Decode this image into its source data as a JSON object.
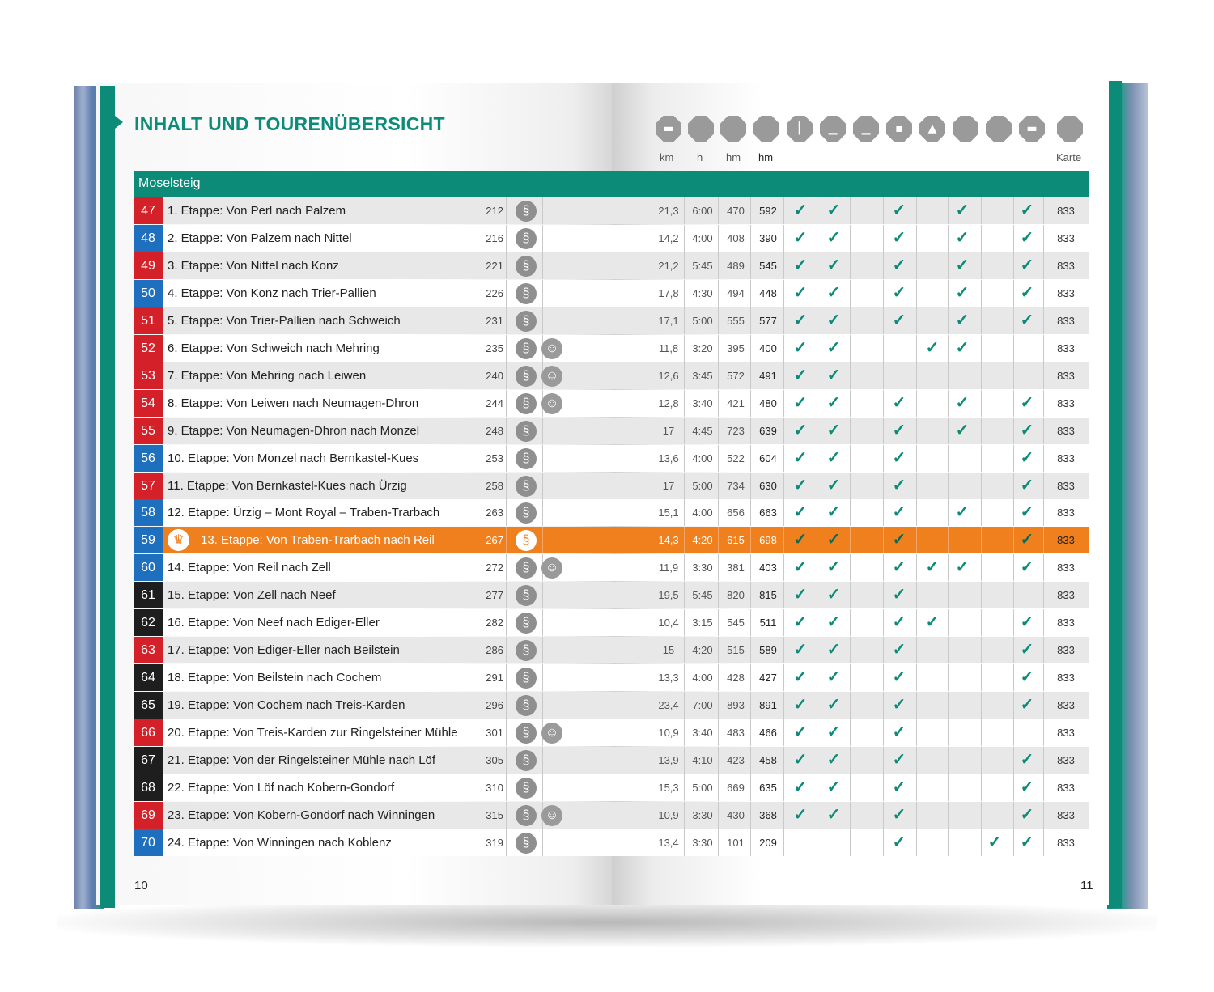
{
  "left_page": {
    "title": "INHALT UND TOURENÜBERSICHT",
    "page_number": "10"
  },
  "right_page": {
    "page_number": "11",
    "header_icons": [
      "category-icon",
      "category-icon",
      "category-icon",
      "category-icon",
      "category-icon",
      "category-icon",
      "category-icon",
      "category-icon",
      "category-icon",
      "category-icon",
      "category-icon",
      "category-icon",
      "category-icon"
    ],
    "column_headers": {
      "km": "km",
      "h": "h",
      "hm_up": "hm",
      "hm_down": "hm",
      "map": "Karte"
    }
  },
  "section": {
    "label": "Moselsteig"
  },
  "colors": {
    "accent": "#0b8b78",
    "highlight": "#f07f1e",
    "red": "#d42028",
    "blue": "#1e6fbd",
    "black": "#1e1e1e"
  },
  "check_symbol": "✓",
  "tours": [
    {
      "num": "47",
      "color": "red",
      "name": "1. Etappe: Von Perl nach Palzem",
      "page": "212",
      "kid": false,
      "km": "21,3",
      "h": "6:00",
      "hm_up": "470",
      "hm_down": "592",
      "checks": [
        1,
        1,
        0,
        1,
        0,
        1,
        0,
        1
      ],
      "map": "833"
    },
    {
      "num": "48",
      "color": "blue",
      "name": "2. Etappe: Von Palzem nach Nittel",
      "page": "216",
      "kid": false,
      "km": "14,2",
      "h": "4:00",
      "hm_up": "408",
      "hm_down": "390",
      "checks": [
        1,
        1,
        0,
        1,
        0,
        1,
        0,
        1
      ],
      "map": "833"
    },
    {
      "num": "49",
      "color": "red",
      "name": "3. Etappe: Von Nittel nach Konz",
      "page": "221",
      "kid": false,
      "km": "21,2",
      "h": "5:45",
      "hm_up": "489",
      "hm_down": "545",
      "checks": [
        1,
        1,
        0,
        1,
        0,
        1,
        0,
        1
      ],
      "map": "833"
    },
    {
      "num": "50",
      "color": "blue",
      "name": "4. Etappe: Von Konz nach Trier-Pallien",
      "page": "226",
      "kid": false,
      "km": "17,8",
      "h": "4:30",
      "hm_up": "494",
      "hm_down": "448",
      "checks": [
        1,
        1,
        0,
        1,
        0,
        1,
        0,
        1
      ],
      "map": "833"
    },
    {
      "num": "51",
      "color": "red",
      "name": "5. Etappe: Von Trier-Pallien nach Schweich",
      "page": "231",
      "kid": false,
      "km": "17,1",
      "h": "5:00",
      "hm_up": "555",
      "hm_down": "577",
      "checks": [
        1,
        1,
        0,
        1,
        0,
        1,
        0,
        1
      ],
      "map": "833"
    },
    {
      "num": "52",
      "color": "red",
      "name": "6. Etappe: Von Schweich nach Mehring",
      "page": "235",
      "kid": true,
      "km": "11,8",
      "h": "3:20",
      "hm_up": "395",
      "hm_down": "400",
      "checks": [
        1,
        1,
        0,
        0,
        1,
        1,
        0,
        0
      ],
      "map": "833"
    },
    {
      "num": "53",
      "color": "red",
      "name": "7. Etappe: Von Mehring nach Leiwen",
      "page": "240",
      "kid": true,
      "km": "12,6",
      "h": "3:45",
      "hm_up": "572",
      "hm_down": "491",
      "checks": [
        1,
        1,
        0,
        0,
        0,
        0,
        0,
        0
      ],
      "map": "833"
    },
    {
      "num": "54",
      "color": "red",
      "name": "8. Etappe: Von Leiwen nach Neumagen-Dhron",
      "page": "244",
      "kid": true,
      "km": "12,8",
      "h": "3:40",
      "hm_up": "421",
      "hm_down": "480",
      "checks": [
        1,
        1,
        0,
        1,
        0,
        1,
        0,
        1
      ],
      "map": "833"
    },
    {
      "num": "55",
      "color": "red",
      "name": "9. Etappe: Von Neumagen-Dhron nach Monzel",
      "page": "248",
      "kid": false,
      "km": "17",
      "h": "4:45",
      "hm_up": "723",
      "hm_down": "639",
      "checks": [
        1,
        1,
        0,
        1,
        0,
        1,
        0,
        1
      ],
      "map": "833"
    },
    {
      "num": "56",
      "color": "blue",
      "name": "10. Etappe: Von Monzel nach Bernkastel-Kues",
      "page": "253",
      "kid": false,
      "km": "13,6",
      "h": "4:00",
      "hm_up": "522",
      "hm_down": "604",
      "checks": [
        1,
        1,
        0,
        1,
        0,
        0,
        0,
        1
      ],
      "map": "833"
    },
    {
      "num": "57",
      "color": "red",
      "name": "11. Etappe: Von Bernkastel-Kues nach Ürzig",
      "page": "258",
      "kid": false,
      "km": "17",
      "h": "5:00",
      "hm_up": "734",
      "hm_down": "630",
      "checks": [
        1,
        1,
        0,
        1,
        0,
        0,
        0,
        1
      ],
      "map": "833"
    },
    {
      "num": "58",
      "color": "blue",
      "name": "12. Etappe: Ürzig – Mont Royal – Traben-Trarbach",
      "page": "263",
      "kid": false,
      "km": "15,1",
      "h": "4:00",
      "hm_up": "656",
      "hm_down": "663",
      "checks": [
        1,
        1,
        0,
        1,
        0,
        1,
        0,
        1
      ],
      "map": "833"
    },
    {
      "num": "59",
      "color": "blue",
      "name": "13. Etappe: Von Traben-Trarbach nach Reil",
      "page": "267",
      "kid": false,
      "km": "14,3",
      "h": "4:20",
      "hm_up": "615",
      "hm_down": "698",
      "checks": [
        1,
        1,
        0,
        1,
        0,
        0,
        0,
        1
      ],
      "map": "833",
      "highlight": true
    },
    {
      "num": "60",
      "color": "blue",
      "name": "14. Etappe: Von Reil nach Zell",
      "page": "272",
      "kid": true,
      "km": "11,9",
      "h": "3:30",
      "hm_up": "381",
      "hm_down": "403",
      "checks": [
        1,
        1,
        0,
        1,
        1,
        1,
        0,
        1
      ],
      "map": "833"
    },
    {
      "num": "61",
      "color": "black",
      "name": "15. Etappe: Von Zell nach Neef",
      "page": "277",
      "kid": false,
      "km": "19,5",
      "h": "5:45",
      "hm_up": "820",
      "hm_down": "815",
      "checks": [
        1,
        1,
        0,
        1,
        0,
        0,
        0,
        0
      ],
      "map": "833"
    },
    {
      "num": "62",
      "color": "black",
      "name": "16. Etappe: Von Neef nach Ediger-Eller",
      "page": "282",
      "kid": false,
      "km": "10,4",
      "h": "3:15",
      "hm_up": "545",
      "hm_down": "511",
      "checks": [
        1,
        1,
        0,
        1,
        1,
        0,
        0,
        1
      ],
      "map": "833"
    },
    {
      "num": "63",
      "color": "red",
      "name": "17. Etappe: Von Ediger-Eller nach Beilstein",
      "page": "286",
      "kid": false,
      "km": "15",
      "h": "4:20",
      "hm_up": "515",
      "hm_down": "589",
      "checks": [
        1,
        1,
        0,
        1,
        0,
        0,
        0,
        1
      ],
      "map": "833"
    },
    {
      "num": "64",
      "color": "black",
      "name": "18. Etappe: Von Beilstein nach Cochem",
      "page": "291",
      "kid": false,
      "km": "13,3",
      "h": "4:00",
      "hm_up": "428",
      "hm_down": "427",
      "checks": [
        1,
        1,
        0,
        1,
        0,
        0,
        0,
        1
      ],
      "map": "833"
    },
    {
      "num": "65",
      "color": "black",
      "name": "19. Etappe: Von Cochem nach Treis-Karden",
      "page": "296",
      "kid": false,
      "km": "23,4",
      "h": "7:00",
      "hm_up": "893",
      "hm_down": "891",
      "checks": [
        1,
        1,
        0,
        1,
        0,
        0,
        0,
        1
      ],
      "map": "833"
    },
    {
      "num": "66",
      "color": "red",
      "name": "20. Etappe: Von Treis-Karden zur Ringelsteiner Mühle",
      "page": "301",
      "kid": true,
      "km": "10,9",
      "h": "3:40",
      "hm_up": "483",
      "hm_down": "466",
      "checks": [
        1,
        1,
        0,
        1,
        0,
        0,
        0,
        0
      ],
      "map": "833"
    },
    {
      "num": "67",
      "color": "black",
      "name": "21. Etappe: Von der Ringelsteiner Mühle nach Löf",
      "page": "305",
      "kid": false,
      "km": "13,9",
      "h": "4:10",
      "hm_up": "423",
      "hm_down": "458",
      "checks": [
        1,
        1,
        0,
        1,
        0,
        0,
        0,
        1
      ],
      "map": "833"
    },
    {
      "num": "68",
      "color": "black",
      "name": "22. Etappe: Von Löf nach Kobern-Gondorf",
      "page": "310",
      "kid": false,
      "km": "15,3",
      "h": "5:00",
      "hm_up": "669",
      "hm_down": "635",
      "checks": [
        1,
        1,
        0,
        1,
        0,
        0,
        0,
        1
      ],
      "map": "833"
    },
    {
      "num": "69",
      "color": "red",
      "name": "23. Etappe: Von Kobern-Gondorf nach Winningen",
      "page": "315",
      "kid": true,
      "km": "10,9",
      "h": "3:30",
      "hm_up": "430",
      "hm_down": "368",
      "checks": [
        1,
        1,
        0,
        1,
        0,
        0,
        0,
        1
      ],
      "map": "833"
    },
    {
      "num": "70",
      "color": "blue",
      "name": "24. Etappe: Von Winningen nach Koblenz",
      "page": "319",
      "kid": false,
      "km": "13,4",
      "h": "3:30",
      "hm_up": "101",
      "hm_down": "209",
      "checks": [
        0,
        0,
        0,
        1,
        0,
        0,
        1,
        1
      ],
      "map": "833"
    }
  ]
}
